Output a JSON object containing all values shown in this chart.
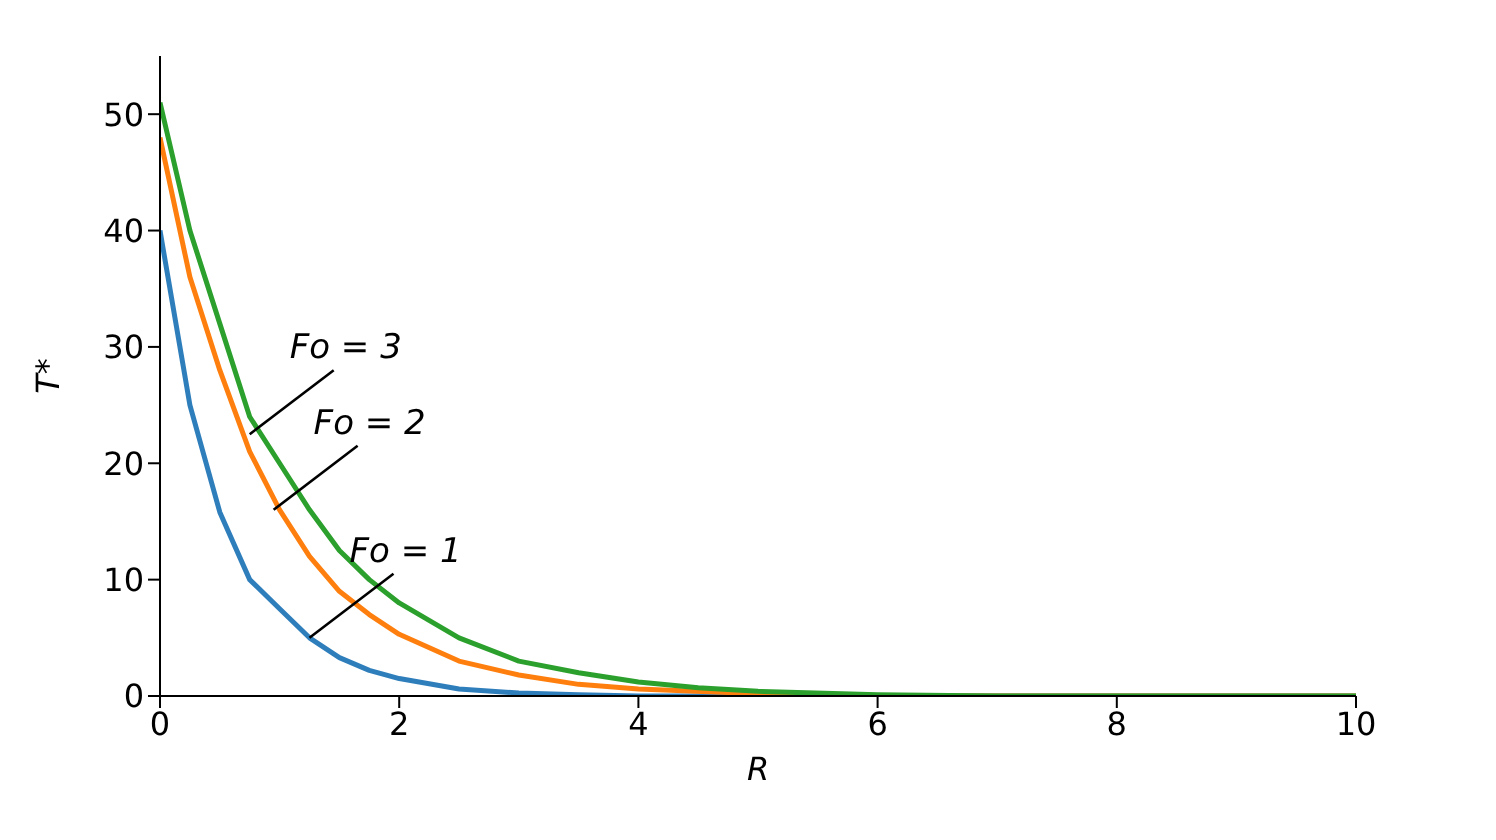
{
  "chart_data": {
    "type": "line",
    "xlabel": "R",
    "ylabel": "T*",
    "xlim": [
      0,
      10
    ],
    "ylim": [
      0,
      55
    ],
    "xticks": [
      0,
      2,
      4,
      6,
      8,
      10
    ],
    "yticks": [
      0,
      10,
      20,
      30,
      40,
      50
    ],
    "grid": false,
    "legend": false,
    "marker": "none",
    "line_style": "solid",
    "series": [
      {
        "color": "#2f7ebc",
        "x": [
          0,
          0.25,
          0.5,
          0.75,
          1,
          1.25,
          1.5,
          1.75,
          2,
          2.5,
          3,
          3.5,
          4,
          6,
          10
        ],
        "values": [
          40,
          25,
          15.8,
          10,
          7.5,
          5,
          3.3,
          2.2,
          1.5,
          0.6,
          0.25,
          0.1,
          0,
          0,
          0
        ]
      },
      {
        "color": "#ff7f0e",
        "x": [
          0,
          0.25,
          0.5,
          0.75,
          1,
          1.25,
          1.5,
          1.75,
          2,
          2.5,
          3,
          3.5,
          4,
          5,
          6,
          10
        ],
        "values": [
          48,
          36,
          28,
          21,
          16,
          12,
          9,
          7,
          5.3,
          3,
          1.8,
          1,
          0.6,
          0.2,
          0,
          0
        ]
      },
      {
        "color": "#2ca02c",
        "x": [
          0,
          0.25,
          0.5,
          0.75,
          1,
          1.25,
          1.5,
          1.75,
          2,
          2.5,
          3,
          3.5,
          4,
          4.5,
          5,
          6,
          7,
          10
        ],
        "values": [
          51,
          40,
          32,
          24,
          20,
          16,
          12.5,
          10,
          8,
          5,
          3,
          2,
          1.2,
          0.7,
          0.4,
          0.1,
          0,
          0
        ]
      }
    ],
    "annotations": [
      {
        "text": "Fo = 3",
        "x": 0.75,
        "y": 22.5
      },
      {
        "text": "Fo = 2",
        "x": 0.95,
        "y": 16
      },
      {
        "text": "Fo = 1",
        "x": 1.25,
        "y": 5
      }
    ]
  }
}
